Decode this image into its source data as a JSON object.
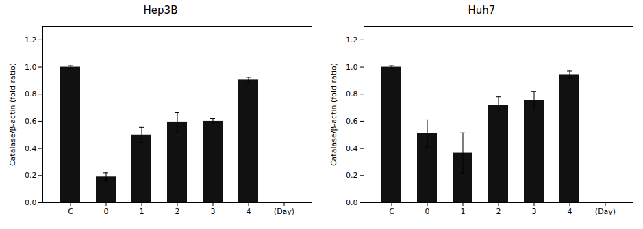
{
  "chart_data": [
    {
      "type": "bar",
      "title": "Hep3B",
      "categories": [
        "C",
        "0",
        "1",
        "2",
        "3",
        "4",
        "(Day)"
      ],
      "values": [
        1.0,
        0.19,
        0.5,
        0.595,
        0.6,
        0.905,
        null
      ],
      "errors": [
        0.01,
        0.03,
        0.055,
        0.07,
        0.02,
        0.02,
        null
      ],
      "ylabel": "Catalase/β-actin (fold ratio)",
      "ylim": [
        0,
        1.3
      ],
      "yticks": [
        {
          "value": 0,
          "label": "0.0"
        },
        0.2,
        0.4,
        0.6,
        0.8,
        {
          "value": 1,
          "label": "1.0"
        },
        1.2
      ],
      "color": "#111111",
      "grid": false
    },
    {
      "type": "bar",
      "title": "Huh7",
      "categories": [
        "C",
        "0",
        "1",
        "2",
        "3",
        "4",
        "(Day)"
      ],
      "values": [
        1.0,
        0.51,
        0.365,
        0.72,
        0.755,
        0.945,
        null
      ],
      "errors": [
        0.01,
        0.1,
        0.15,
        0.06,
        0.065,
        0.025,
        null
      ],
      "ylabel": "Catalase/β-actin (fold ratio)",
      "ylim": [
        0,
        1.3
      ],
      "yticks": [
        {
          "value": 0,
          "label": "0.0"
        },
        0.2,
        0.4,
        0.6,
        0.8,
        {
          "value": 1,
          "label": "1.0"
        },
        1.2
      ],
      "color": "#111111",
      "grid": false
    }
  ]
}
